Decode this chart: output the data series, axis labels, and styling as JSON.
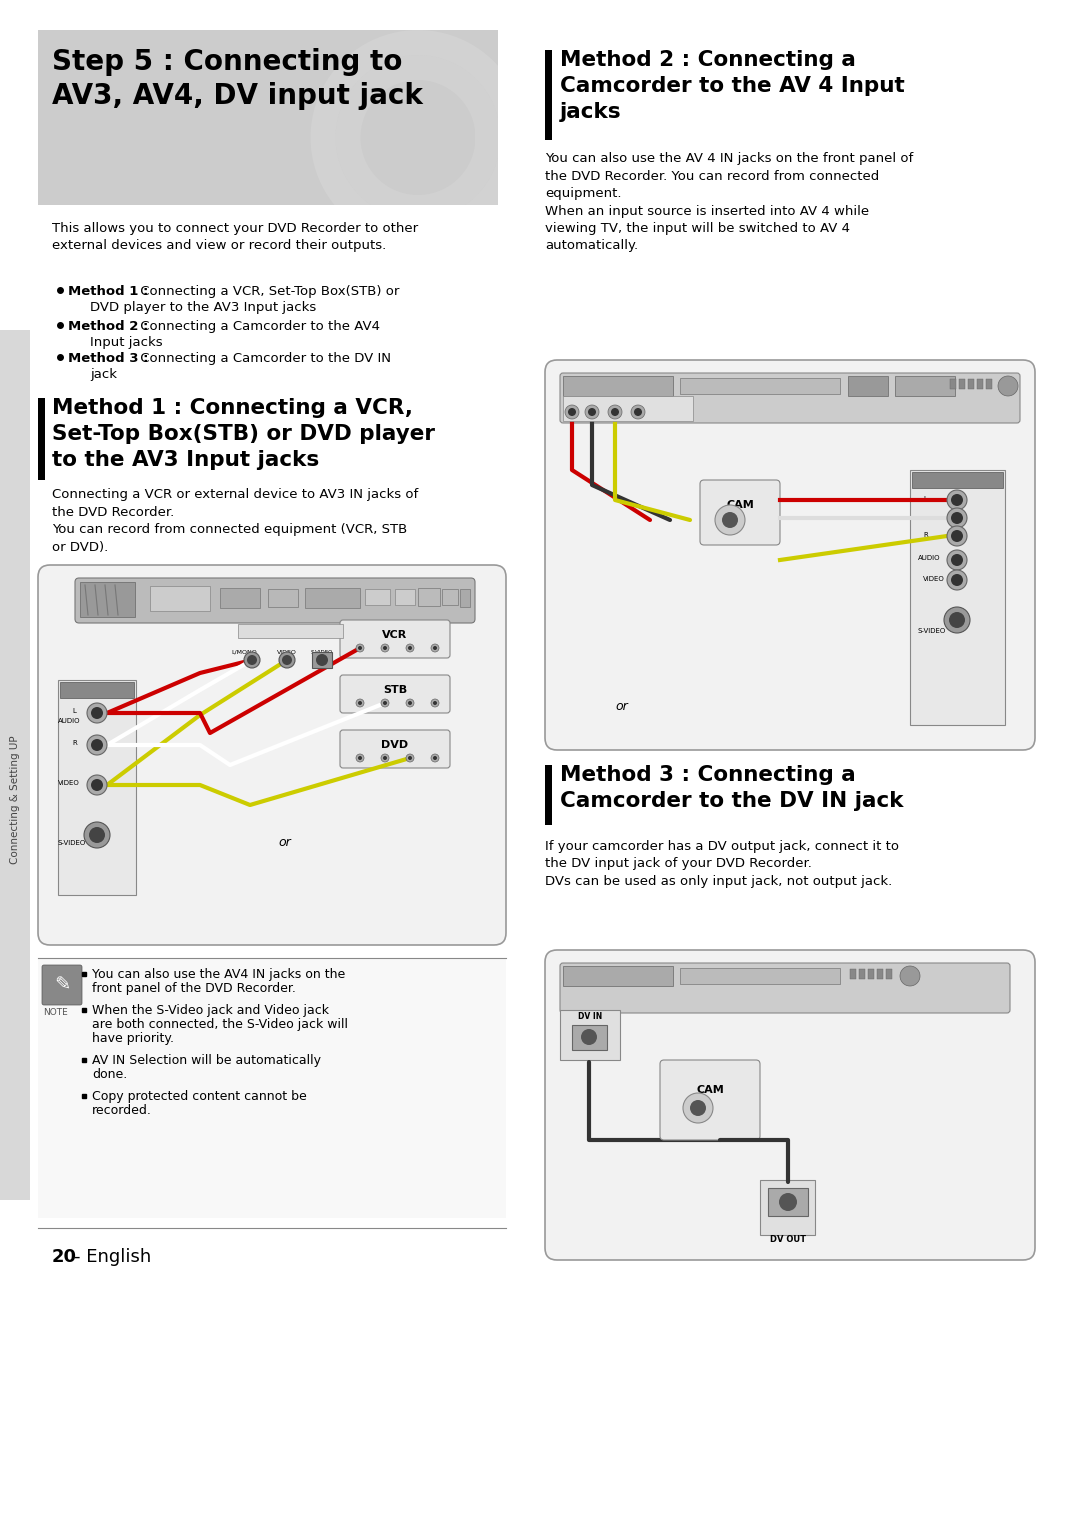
{
  "page_bg": "#ffffff",
  "sidebar_text": "Connecting & Setting UP",
  "header_title": "Step 5 : Connecting to\nAV3, AV4, DV input jack",
  "header_subtitle": "This allows you to connect your DVD Recorder to other\nexternal devices and view or record their outputs.",
  "bullet1_bold": "Method 1 :",
  "bullet1_rest": " Connecting a VCR, Set-Top Box(STB) or\n     DVD player to the AV3 Input jacks",
  "bullet2_bold": "Method 2 :",
  "bullet2_rest": " Connecting a Camcorder to the AV4\n     Input jacks",
  "bullet3_bold": "Method 3 :",
  "bullet3_rest": " Connecting a Camcorder to the DV IN\n     jack",
  "method1_heading_line1": "Method 1 : Connecting a VCR,",
  "method1_heading_line2": "Set-Top Box(STB) or DVD player",
  "method1_heading_line3": "to the AV3 Input jacks",
  "method1_body": "Connecting a VCR or external device to AV3 IN jacks of\nthe DVD Recorder.\nYou can record from connected equipment (VCR, STB\nor DVD).",
  "method2_heading_line1": "Method 2 : Connecting a",
  "method2_heading_line2": "Camcorder to the AV 4 Input",
  "method2_heading_line3": "jacks",
  "method2_body": "You can also use the AV 4 IN jacks on the front panel of\nthe DVD Recorder. You can record from connected\nequipment.\nWhen an input source is inserted into AV 4 while\nviewing TV, the input will be switched to AV 4\nautomatically.",
  "method3_heading_line1": "Method 3 : Connecting a",
  "method3_heading_line2": "Camcorder to the DV IN jack",
  "method3_body": "If your camcorder has a DV output jack, connect it to\nthe DV input jack of your DVD Recorder.\nDVs can be used as only input jack, not output jack.",
  "note_item1": "You can also use the AV4 IN jacks on the\nfront panel of the DVD Recorder.",
  "note_item2": "When the S-Video jack and Video jack\nare both connected, the S-Video jack will\nhave priority.",
  "note_item3": "AV IN Selection will be automatically\ndone.",
  "note_item4": "Copy protected content cannot be\nrecorded.",
  "footer_text": "20",
  "footer_text2": "- English"
}
